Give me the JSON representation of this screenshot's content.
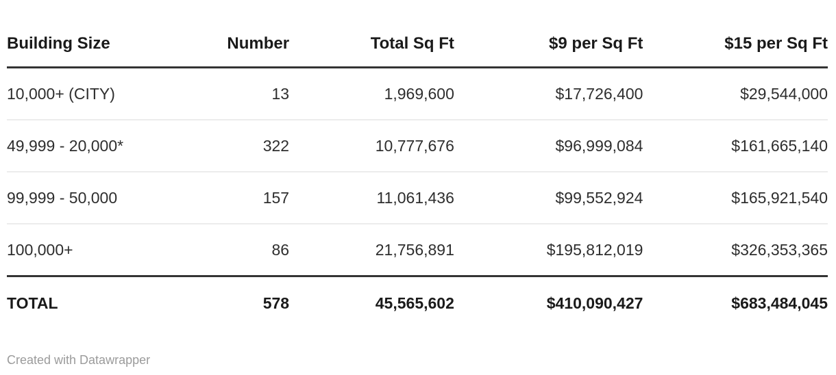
{
  "chart_data": {
    "type": "table",
    "columns": [
      "Building Size",
      "Number",
      "Total Sq Ft",
      "$9 per Sq Ft",
      "$15 per Sq Ft"
    ],
    "column_aligns": [
      "left",
      "right",
      "right",
      "right",
      "right"
    ],
    "rows": [
      [
        "10,000+ (CITY)",
        "13",
        "1,969,600",
        "$17,726,400",
        "$29,544,000"
      ],
      [
        "49,999 - 20,000*",
        "322",
        "10,777,676",
        "$96,999,084",
        "$161,665,140"
      ],
      [
        "99,999 - 50,000",
        "157",
        "11,061,436",
        "$99,552,924",
        "$165,921,540"
      ],
      [
        "100,000+",
        "86",
        "21,756,891",
        "$195,812,019",
        "$326,353,365"
      ]
    ],
    "total_row": [
      "TOTAL",
      "578",
      "45,565,602",
      "$410,090,427",
      "$683,484,045"
    ],
    "numeric_values": {
      "number": [
        13,
        322,
        157,
        86
      ],
      "total_sq_ft": [
        1969600,
        10777676,
        11061436,
        21756891
      ],
      "usd_9_per_sq_ft": [
        17726400,
        96999084,
        99552924,
        195812019
      ],
      "usd_15_per_sq_ft": [
        29544000,
        161665140,
        165921540,
        326353365
      ],
      "totals": {
        "number": 578,
        "total_sq_ft": 45565602,
        "usd_9_per_sq_ft": 410090427,
        "usd_15_per_sq_ft": 683484045
      }
    }
  },
  "footer": {
    "credit": "Created with Datawrapper"
  },
  "colors": {
    "header_text": "#1a1a1a",
    "body_text": "#2e2e2e",
    "rule_dark": "#333333",
    "rule_light": "#ececec",
    "credit_text": "#9b9b9b",
    "background": "#ffffff"
  }
}
